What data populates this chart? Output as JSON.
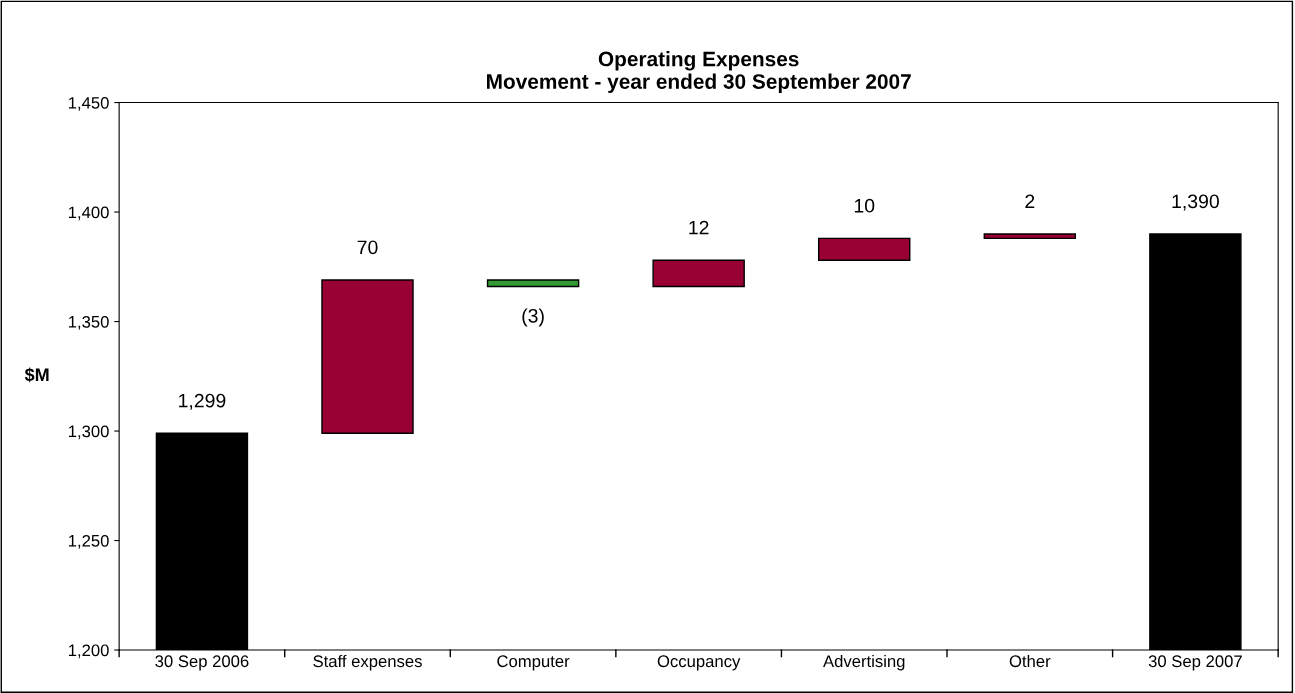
{
  "chart_data": {
    "type": "bar",
    "title": "Operating Expenses\nMovement - year ended 30 September 2007",
    "ylabel": "$M",
    "categories": [
      "30 Sep 2006",
      "Staff expenses",
      "Computer",
      "Occupancy",
      "Advertising",
      "Other",
      "30 Sep 2007"
    ],
    "values": [
      1299,
      70,
      -3,
      12,
      10,
      2,
      1390
    ],
    "base": [
      null,
      1299,
      1369,
      1366,
      1378,
      1388,
      null
    ],
    "colors": [
      "#000000",
      "#990033",
      "#339933",
      "#990033",
      "#990033",
      "#990033",
      "#000000"
    ],
    "value_labels": [
      "1,299",
      "70",
      "(3)",
      "12",
      "10",
      "2",
      "1,390"
    ],
    "ylim": [
      1200,
      1450
    ],
    "yticks": [
      {
        "value": 1200,
        "label": "1,200"
      },
      {
        "value": 1250,
        "label": "1,250"
      },
      {
        "value": 1300,
        "label": "1,300"
      },
      {
        "value": 1350,
        "label": "1,350"
      },
      {
        "value": 1400,
        "label": "1,400"
      },
      {
        "value": 1450,
        "label": "1,450"
      }
    ],
    "grid": false,
    "legend": false
  }
}
